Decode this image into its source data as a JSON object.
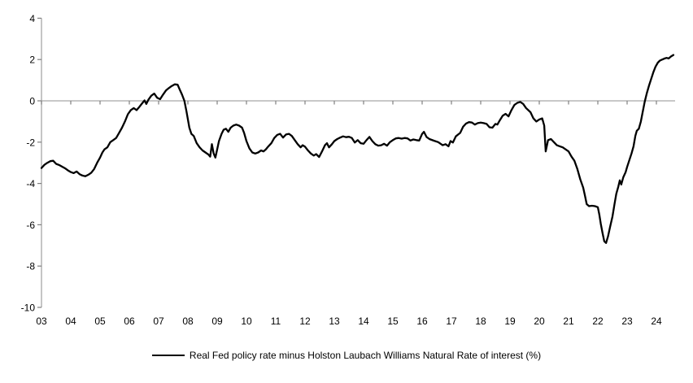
{
  "legend": {
    "label": "Real Fed policy rate minus Holston Laubach Williams Natural Rate of interest (%)"
  },
  "chart_data": {
    "type": "line",
    "title": "",
    "xlabel": "",
    "ylabel": "",
    "legend_position": "bottom-center",
    "grid": "zero-line-only",
    "line_color": "#000000",
    "axis_color": "#a6a6a6",
    "tick_color": "#7f7f7f",
    "ylim": [
      -10,
      4
    ],
    "xlim": [
      2003,
      2024.65
    ],
    "y_ticks": {
      "values": [
        4,
        2,
        0,
        -2,
        -4,
        -6,
        -8,
        -10
      ],
      "labels": [
        "4",
        "2",
        "0",
        "-2",
        "-4",
        "-6",
        "-8",
        "-10"
      ]
    },
    "x_ticks": {
      "values": [
        2003,
        2004,
        2005,
        2006,
        2007,
        2008,
        2009,
        2010,
        2011,
        2012,
        2013,
        2014,
        2015,
        2016,
        2017,
        2018,
        2019,
        2020,
        2021,
        2022,
        2023,
        2024
      ],
      "labels": [
        "03",
        "04",
        "05",
        "06",
        "07",
        "08",
        "09",
        "10",
        "11",
        "12",
        "13",
        "14",
        "15",
        "16",
        "17",
        "18",
        "19",
        "20",
        "21",
        "22",
        "23",
        "24"
      ]
    },
    "series": [
      {
        "name": "Real Fed policy rate minus Holston Laubach Williams Natural Rate of interest (%)",
        "points": [
          [
            2003.0,
            -3.25
          ],
          [
            2003.1,
            -3.1
          ],
          [
            2003.2,
            -3.0
          ],
          [
            2003.3,
            -2.92
          ],
          [
            2003.4,
            -2.9
          ],
          [
            2003.5,
            -3.05
          ],
          [
            2003.62,
            -3.12
          ],
          [
            2003.72,
            -3.2
          ],
          [
            2003.82,
            -3.28
          ],
          [
            2003.92,
            -3.38
          ],
          [
            2004.0,
            -3.45
          ],
          [
            2004.1,
            -3.5
          ],
          [
            2004.2,
            -3.42
          ],
          [
            2004.3,
            -3.55
          ],
          [
            2004.4,
            -3.62
          ],
          [
            2004.5,
            -3.65
          ],
          [
            2004.6,
            -3.58
          ],
          [
            2004.7,
            -3.48
          ],
          [
            2004.8,
            -3.3
          ],
          [
            2004.9,
            -3.0
          ],
          [
            2005.0,
            -2.75
          ],
          [
            2005.08,
            -2.5
          ],
          [
            2005.15,
            -2.35
          ],
          [
            2005.25,
            -2.25
          ],
          [
            2005.35,
            -2.0
          ],
          [
            2005.45,
            -1.9
          ],
          [
            2005.55,
            -1.8
          ],
          [
            2005.65,
            -1.55
          ],
          [
            2005.75,
            -1.3
          ],
          [
            2005.85,
            -1.0
          ],
          [
            2005.95,
            -0.65
          ],
          [
            2006.05,
            -0.45
          ],
          [
            2006.15,
            -0.35
          ],
          [
            2006.25,
            -0.45
          ],
          [
            2006.35,
            -0.28
          ],
          [
            2006.45,
            -0.1
          ],
          [
            2006.52,
            0.02
          ],
          [
            2006.58,
            -0.15
          ],
          [
            2006.65,
            0.05
          ],
          [
            2006.75,
            0.25
          ],
          [
            2006.85,
            0.35
          ],
          [
            2006.95,
            0.15
          ],
          [
            2007.05,
            0.08
          ],
          [
            2007.15,
            0.3
          ],
          [
            2007.25,
            0.5
          ],
          [
            2007.35,
            0.62
          ],
          [
            2007.45,
            0.72
          ],
          [
            2007.55,
            0.8
          ],
          [
            2007.65,
            0.78
          ],
          [
            2007.72,
            0.55
          ],
          [
            2007.8,
            0.3
          ],
          [
            2007.88,
            0.0
          ],
          [
            2007.95,
            -0.5
          ],
          [
            2008.05,
            -1.3
          ],
          [
            2008.12,
            -1.6
          ],
          [
            2008.2,
            -1.7
          ],
          [
            2008.3,
            -2.05
          ],
          [
            2008.4,
            -2.25
          ],
          [
            2008.5,
            -2.4
          ],
          [
            2008.6,
            -2.5
          ],
          [
            2008.7,
            -2.6
          ],
          [
            2008.76,
            -2.7
          ],
          [
            2008.82,
            -2.1
          ],
          [
            2008.88,
            -2.55
          ],
          [
            2008.94,
            -2.75
          ],
          [
            2009.0,
            -2.35
          ],
          [
            2009.06,
            -1.95
          ],
          [
            2009.15,
            -1.6
          ],
          [
            2009.22,
            -1.4
          ],
          [
            2009.3,
            -1.35
          ],
          [
            2009.38,
            -1.5
          ],
          [
            2009.46,
            -1.3
          ],
          [
            2009.55,
            -1.2
          ],
          [
            2009.65,
            -1.15
          ],
          [
            2009.75,
            -1.2
          ],
          [
            2009.85,
            -1.3
          ],
          [
            2009.92,
            -1.55
          ],
          [
            2010.0,
            -1.95
          ],
          [
            2010.1,
            -2.3
          ],
          [
            2010.2,
            -2.5
          ],
          [
            2010.3,
            -2.55
          ],
          [
            2010.4,
            -2.5
          ],
          [
            2010.5,
            -2.4
          ],
          [
            2010.58,
            -2.45
          ],
          [
            2010.66,
            -2.35
          ],
          [
            2010.75,
            -2.2
          ],
          [
            2010.85,
            -2.05
          ],
          [
            2010.95,
            -1.8
          ],
          [
            2011.05,
            -1.65
          ],
          [
            2011.15,
            -1.6
          ],
          [
            2011.25,
            -1.78
          ],
          [
            2011.35,
            -1.63
          ],
          [
            2011.45,
            -1.6
          ],
          [
            2011.55,
            -1.7
          ],
          [
            2011.65,
            -1.9
          ],
          [
            2011.75,
            -2.1
          ],
          [
            2011.85,
            -2.25
          ],
          [
            2011.92,
            -2.15
          ],
          [
            2012.0,
            -2.22
          ],
          [
            2012.1,
            -2.4
          ],
          [
            2012.2,
            -2.55
          ],
          [
            2012.3,
            -2.65
          ],
          [
            2012.38,
            -2.58
          ],
          [
            2012.48,
            -2.72
          ],
          [
            2012.58,
            -2.45
          ],
          [
            2012.68,
            -2.15
          ],
          [
            2012.75,
            -2.05
          ],
          [
            2012.82,
            -2.25
          ],
          [
            2012.92,
            -2.1
          ],
          [
            2013.0,
            -1.95
          ],
          [
            2013.1,
            -1.85
          ],
          [
            2013.2,
            -1.78
          ],
          [
            2013.3,
            -1.72
          ],
          [
            2013.4,
            -1.76
          ],
          [
            2013.5,
            -1.74
          ],
          [
            2013.6,
            -1.8
          ],
          [
            2013.7,
            -2.02
          ],
          [
            2013.8,
            -1.9
          ],
          [
            2013.9,
            -2.05
          ],
          [
            2014.0,
            -2.08
          ],
          [
            2014.1,
            -1.9
          ],
          [
            2014.2,
            -1.75
          ],
          [
            2014.3,
            -1.95
          ],
          [
            2014.4,
            -2.1
          ],
          [
            2014.5,
            -2.17
          ],
          [
            2014.6,
            -2.15
          ],
          [
            2014.7,
            -2.08
          ],
          [
            2014.8,
            -2.17
          ],
          [
            2014.9,
            -2.0
          ],
          [
            2015.0,
            -1.9
          ],
          [
            2015.1,
            -1.82
          ],
          [
            2015.2,
            -1.8
          ],
          [
            2015.3,
            -1.83
          ],
          [
            2015.4,
            -1.8
          ],
          [
            2015.5,
            -1.82
          ],
          [
            2015.6,
            -1.92
          ],
          [
            2015.7,
            -1.87
          ],
          [
            2015.8,
            -1.9
          ],
          [
            2015.9,
            -1.92
          ],
          [
            2016.0,
            -1.6
          ],
          [
            2016.06,
            -1.5
          ],
          [
            2016.15,
            -1.75
          ],
          [
            2016.25,
            -1.85
          ],
          [
            2016.4,
            -1.93
          ],
          [
            2016.55,
            -2.0
          ],
          [
            2016.7,
            -2.15
          ],
          [
            2016.8,
            -2.1
          ],
          [
            2016.9,
            -2.2
          ],
          [
            2016.97,
            -1.95
          ],
          [
            2017.05,
            -2.02
          ],
          [
            2017.15,
            -1.72
          ],
          [
            2017.3,
            -1.55
          ],
          [
            2017.4,
            -1.25
          ],
          [
            2017.5,
            -1.1
          ],
          [
            2017.6,
            -1.03
          ],
          [
            2017.7,
            -1.05
          ],
          [
            2017.8,
            -1.15
          ],
          [
            2017.9,
            -1.08
          ],
          [
            2018.0,
            -1.05
          ],
          [
            2018.1,
            -1.08
          ],
          [
            2018.2,
            -1.12
          ],
          [
            2018.3,
            -1.28
          ],
          [
            2018.4,
            -1.3
          ],
          [
            2018.5,
            -1.12
          ],
          [
            2018.57,
            -1.15
          ],
          [
            2018.65,
            -0.95
          ],
          [
            2018.75,
            -0.72
          ],
          [
            2018.85,
            -0.63
          ],
          [
            2018.95,
            -0.75
          ],
          [
            2019.05,
            -0.45
          ],
          [
            2019.15,
            -0.2
          ],
          [
            2019.25,
            -0.1
          ],
          [
            2019.35,
            -0.05
          ],
          [
            2019.45,
            -0.15
          ],
          [
            2019.55,
            -0.35
          ],
          [
            2019.7,
            -0.55
          ],
          [
            2019.8,
            -0.85
          ],
          [
            2019.9,
            -1.0
          ],
          [
            2020.0,
            -0.9
          ],
          [
            2020.1,
            -0.85
          ],
          [
            2020.17,
            -1.2
          ],
          [
            2020.22,
            -2.45
          ],
          [
            2020.3,
            -1.9
          ],
          [
            2020.4,
            -1.85
          ],
          [
            2020.5,
            -2.0
          ],
          [
            2020.6,
            -2.15
          ],
          [
            2020.7,
            -2.2
          ],
          [
            2020.8,
            -2.25
          ],
          [
            2020.9,
            -2.35
          ],
          [
            2021.0,
            -2.45
          ],
          [
            2021.1,
            -2.7
          ],
          [
            2021.2,
            -2.9
          ],
          [
            2021.3,
            -3.3
          ],
          [
            2021.4,
            -3.8
          ],
          [
            2021.5,
            -4.2
          ],
          [
            2021.56,
            -4.6
          ],
          [
            2021.62,
            -5.0
          ],
          [
            2021.7,
            -5.1
          ],
          [
            2021.8,
            -5.08
          ],
          [
            2021.9,
            -5.1
          ],
          [
            2022.0,
            -5.15
          ],
          [
            2022.05,
            -5.5
          ],
          [
            2022.1,
            -5.95
          ],
          [
            2022.16,
            -6.4
          ],
          [
            2022.22,
            -6.8
          ],
          [
            2022.28,
            -6.88
          ],
          [
            2022.35,
            -6.55
          ],
          [
            2022.42,
            -6.1
          ],
          [
            2022.5,
            -5.6
          ],
          [
            2022.57,
            -5.0
          ],
          [
            2022.63,
            -4.5
          ],
          [
            2022.7,
            -4.15
          ],
          [
            2022.75,
            -3.85
          ],
          [
            2022.8,
            -4.05
          ],
          [
            2022.87,
            -3.7
          ],
          [
            2022.95,
            -3.45
          ],
          [
            2023.0,
            -3.2
          ],
          [
            2023.07,
            -2.9
          ],
          [
            2023.15,
            -2.55
          ],
          [
            2023.22,
            -2.2
          ],
          [
            2023.28,
            -1.7
          ],
          [
            2023.33,
            -1.45
          ],
          [
            2023.4,
            -1.35
          ],
          [
            2023.47,
            -1.0
          ],
          [
            2023.53,
            -0.55
          ],
          [
            2023.6,
            -0.05
          ],
          [
            2023.67,
            0.35
          ],
          [
            2023.75,
            0.75
          ],
          [
            2023.82,
            1.05
          ],
          [
            2023.9,
            1.4
          ],
          [
            2023.97,
            1.65
          ],
          [
            2024.05,
            1.85
          ],
          [
            2024.12,
            1.95
          ],
          [
            2024.2,
            2.0
          ],
          [
            2024.28,
            2.05
          ],
          [
            2024.35,
            2.08
          ],
          [
            2024.42,
            2.05
          ],
          [
            2024.5,
            2.15
          ],
          [
            2024.58,
            2.22
          ]
        ]
      }
    ]
  }
}
